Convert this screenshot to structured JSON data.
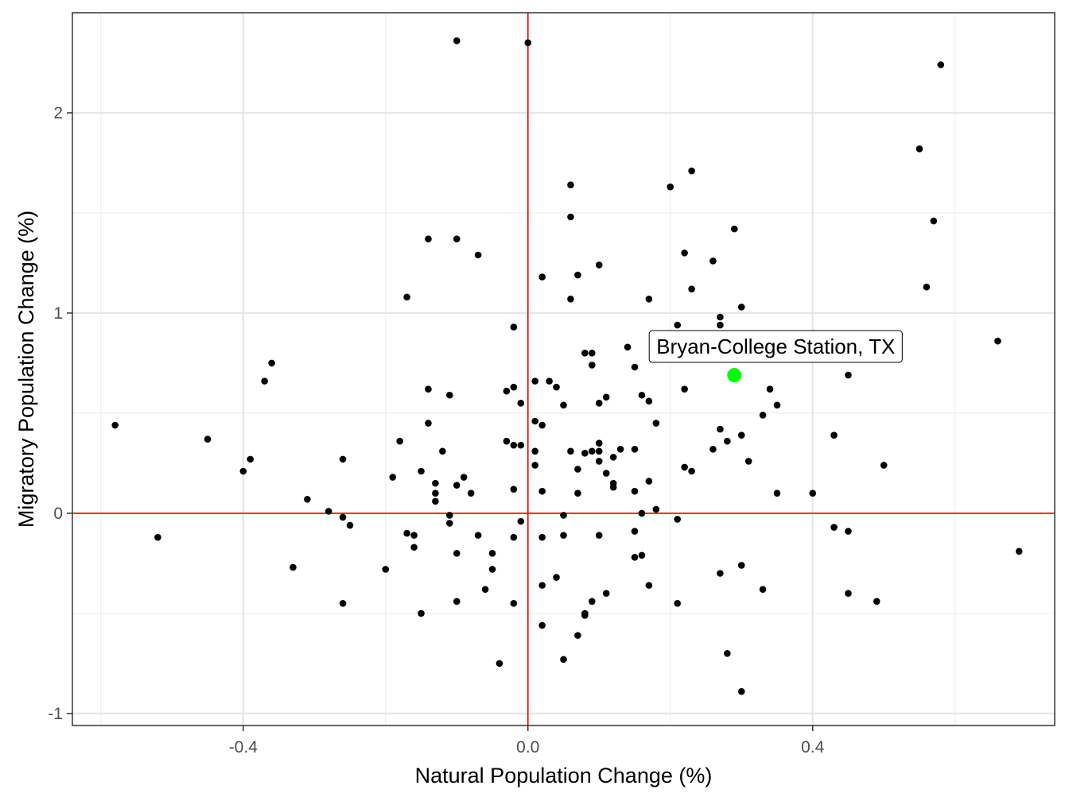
{
  "chart_data": {
    "type": "scatter",
    "title": "",
    "xlabel": "Natural Population Change (%)",
    "ylabel": "Migratory Population Change (%)",
    "xlim": [
      -0.64,
      0.74
    ],
    "ylim": [
      -1.06,
      2.5
    ],
    "x_ticks": [
      -0.4,
      0.0,
      0.4
    ],
    "x_tick_labels": [
      "-0.4",
      "0.0",
      "0.4"
    ],
    "y_ticks": [
      -1,
      0,
      1,
      2
    ],
    "y_tick_labels": [
      "-1",
      "0",
      "1",
      "2"
    ],
    "grid": true,
    "reference_lines": {
      "x": 0,
      "y": 0,
      "color": "#ff0000"
    },
    "point_color": "#000000",
    "highlight": {
      "label": "Bryan-College Station, TX",
      "x": 0.29,
      "y": 0.69,
      "color": "#00ff00"
    },
    "points": [
      [
        -0.1,
        2.36
      ],
      [
        0.0,
        2.35
      ],
      [
        0.58,
        2.24
      ],
      [
        0.55,
        1.82
      ],
      [
        0.57,
        1.46
      ],
      [
        0.56,
        1.13
      ],
      [
        0.66,
        0.86
      ],
      [
        0.69,
        -0.19
      ],
      [
        0.23,
        1.71
      ],
      [
        0.2,
        1.63
      ],
      [
        0.06,
        1.64
      ],
      [
        0.06,
        1.48
      ],
      [
        0.29,
        1.42
      ],
      [
        0.22,
        1.3
      ],
      [
        0.26,
        1.26
      ],
      [
        0.1,
        1.24
      ],
      [
        0.07,
        1.19
      ],
      [
        0.02,
        1.18
      ],
      [
        0.23,
        1.12
      ],
      [
        0.06,
        1.07
      ],
      [
        0.17,
        1.07
      ],
      [
        0.3,
        1.03
      ],
      [
        0.27,
        0.98
      ],
      [
        0.21,
        0.94
      ],
      [
        0.27,
        0.94
      ],
      [
        -0.02,
        0.93
      ],
      [
        0.14,
        0.83
      ],
      [
        0.08,
        0.8
      ],
      [
        0.09,
        0.8
      ],
      [
        0.09,
        0.74
      ],
      [
        0.15,
        0.73
      ],
      [
        0.45,
        0.69
      ],
      [
        -0.14,
        1.37
      ],
      [
        -0.1,
        1.37
      ],
      [
        -0.07,
        1.29
      ],
      [
        -0.17,
        1.08
      ],
      [
        -0.36,
        0.75
      ],
      [
        -0.37,
        0.66
      ],
      [
        -0.58,
        0.44
      ],
      [
        -0.45,
        0.37
      ],
      [
        -0.39,
        0.27
      ],
      [
        -0.4,
        0.21
      ],
      [
        -0.52,
        -0.12
      ],
      [
        -0.33,
        -0.27
      ],
      [
        -0.31,
        0.07
      ],
      [
        -0.28,
        0.01
      ],
      [
        -0.26,
        -0.02
      ],
      [
        -0.25,
        -0.06
      ],
      [
        -0.26,
        -0.45
      ],
      [
        -0.26,
        0.27
      ],
      [
        -0.2,
        -0.28
      ],
      [
        -0.19,
        0.18
      ],
      [
        -0.18,
        0.36
      ],
      [
        -0.17,
        -0.1
      ],
      [
        -0.16,
        -0.11
      ],
      [
        -0.16,
        -0.17
      ],
      [
        -0.15,
        0.21
      ],
      [
        -0.15,
        -0.5
      ],
      [
        -0.14,
        0.62
      ],
      [
        -0.14,
        0.45
      ],
      [
        -0.13,
        0.15
      ],
      [
        -0.13,
        0.1
      ],
      [
        -0.13,
        0.06
      ],
      [
        -0.12,
        0.31
      ],
      [
        -0.11,
        0.59
      ],
      [
        -0.11,
        -0.01
      ],
      [
        -0.11,
        -0.05
      ],
      [
        -0.1,
        0.14
      ],
      [
        -0.1,
        -0.2
      ],
      [
        -0.1,
        -0.44
      ],
      [
        -0.09,
        0.18
      ],
      [
        -0.08,
        0.1
      ],
      [
        -0.07,
        -0.11
      ],
      [
        -0.06,
        -0.38
      ],
      [
        -0.05,
        -0.2
      ],
      [
        -0.05,
        -0.28
      ],
      [
        -0.04,
        -0.75
      ],
      [
        -0.03,
        0.61
      ],
      [
        -0.03,
        0.36
      ],
      [
        -0.02,
        0.63
      ],
      [
        -0.02,
        0.34
      ],
      [
        -0.02,
        0.12
      ],
      [
        -0.02,
        -0.12
      ],
      [
        -0.02,
        -0.45
      ],
      [
        -0.01,
        0.55
      ],
      [
        -0.01,
        0.34
      ],
      [
        -0.01,
        -0.04
      ],
      [
        0.01,
        0.66
      ],
      [
        0.01,
        0.46
      ],
      [
        0.01,
        0.31
      ],
      [
        0.01,
        0.24
      ],
      [
        0.02,
        0.44
      ],
      [
        0.02,
        0.11
      ],
      [
        0.02,
        -0.12
      ],
      [
        0.02,
        -0.36
      ],
      [
        0.02,
        -0.56
      ],
      [
        0.03,
        0.66
      ],
      [
        0.04,
        0.63
      ],
      [
        0.04,
        -0.32
      ],
      [
        0.05,
        0.54
      ],
      [
        0.05,
        -0.01
      ],
      [
        0.05,
        -0.11
      ],
      [
        0.05,
        -0.73
      ],
      [
        0.06,
        0.31
      ],
      [
        0.07,
        0.22
      ],
      [
        0.07,
        0.1
      ],
      [
        0.07,
        -0.61
      ],
      [
        0.08,
        0.3
      ],
      [
        0.08,
        -0.5
      ],
      [
        0.08,
        -0.51
      ],
      [
        0.09,
        0.31
      ],
      [
        0.09,
        -0.44
      ],
      [
        0.1,
        0.55
      ],
      [
        0.1,
        0.35
      ],
      [
        0.1,
        0.31
      ],
      [
        0.1,
        0.26
      ],
      [
        0.1,
        -0.11
      ],
      [
        0.11,
        0.58
      ],
      [
        0.11,
        0.2
      ],
      [
        0.11,
        -0.4
      ],
      [
        0.12,
        0.28
      ],
      [
        0.12,
        0.15
      ],
      [
        0.12,
        0.13
      ],
      [
        0.13,
        0.32
      ],
      [
        0.15,
        0.32
      ],
      [
        0.15,
        0.11
      ],
      [
        0.15,
        -0.09
      ],
      [
        0.15,
        -0.22
      ],
      [
        0.16,
        0.59
      ],
      [
        0.16,
        0.0
      ],
      [
        0.16,
        -0.21
      ],
      [
        0.17,
        0.56
      ],
      [
        0.17,
        0.16
      ],
      [
        0.17,
        -0.36
      ],
      [
        0.18,
        0.45
      ],
      [
        0.18,
        0.02
      ],
      [
        0.21,
        -0.03
      ],
      [
        0.21,
        -0.45
      ],
      [
        0.22,
        0.62
      ],
      [
        0.22,
        0.23
      ],
      [
        0.23,
        0.21
      ],
      [
        0.26,
        0.32
      ],
      [
        0.27,
        0.42
      ],
      [
        0.27,
        -0.3
      ],
      [
        0.28,
        0.36
      ],
      [
        0.28,
        -0.7
      ],
      [
        0.3,
        0.39
      ],
      [
        0.3,
        -0.26
      ],
      [
        0.3,
        -0.89
      ],
      [
        0.31,
        0.26
      ],
      [
        0.33,
        0.49
      ],
      [
        0.33,
        -0.38
      ],
      [
        0.34,
        0.62
      ],
      [
        0.35,
        0.54
      ],
      [
        0.35,
        0.1
      ],
      [
        0.4,
        0.1
      ],
      [
        0.43,
        0.39
      ],
      [
        0.43,
        -0.07
      ],
      [
        0.45,
        -0.09
      ],
      [
        0.45,
        -0.4
      ],
      [
        0.49,
        -0.44
      ],
      [
        0.5,
        0.24
      ]
    ]
  }
}
